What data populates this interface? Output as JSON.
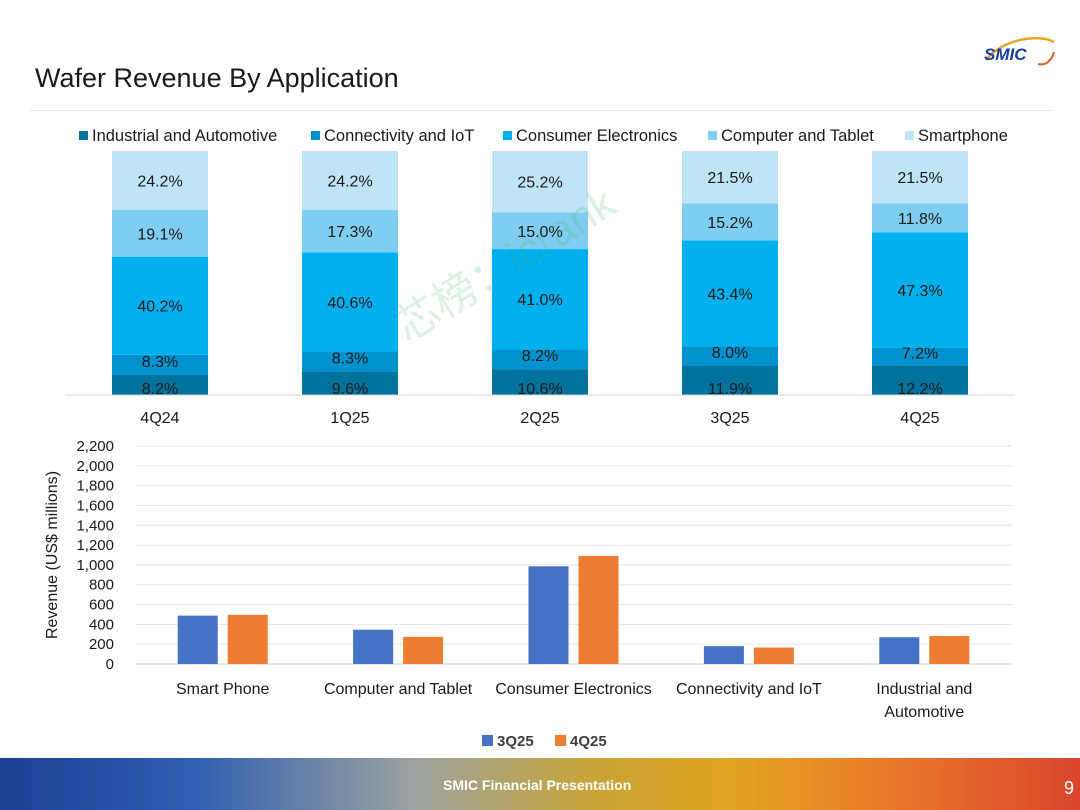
{
  "page": {
    "title": "Wafer Revenue By Application",
    "footer": "SMIC Financial Presentation",
    "page_number": "9",
    "logo_text": "SMIC",
    "watermark": "芯榜：icrank"
  },
  "colors": {
    "industrial": "#00729b",
    "connectivity": "#0091cf",
    "consumer": "#00b0ee",
    "computer": "#7fcdf1",
    "smartphone": "#bfe4f8",
    "q3": "#4472c4",
    "q4": "#ed7d31",
    "logo": "#1740a0"
  },
  "chart_data": [
    {
      "type": "bar",
      "stacked": true,
      "percent": true,
      "categories": [
        "4Q24",
        "1Q25",
        "2Q25",
        "3Q25",
        "4Q25"
      ],
      "legend_position": "top",
      "series": [
        {
          "name": "Industrial and Automotive",
          "color_key": "industrial",
          "values": [
            8.2,
            9.6,
            10.6,
            11.9,
            12.2
          ],
          "labels": [
            "8.2%",
            "9.6%",
            "10.6%",
            "11.9%",
            "12.2%"
          ]
        },
        {
          "name": "Connectivity and IoT",
          "color_key": "connectivity",
          "values": [
            8.3,
            8.3,
            8.2,
            8.0,
            7.2
          ],
          "labels": [
            "8.3%",
            "8.3%",
            "8.2%",
            "8.0%",
            "7.2%"
          ]
        },
        {
          "name": "Consumer Electronics",
          "color_key": "consumer",
          "values": [
            40.2,
            40.6,
            41.0,
            43.4,
            47.3
          ],
          "labels": [
            "40.2%",
            "40.6%",
            "41.0%",
            "43.4%",
            "47.3%"
          ]
        },
        {
          "name": "Computer and Tablet",
          "color_key": "computer",
          "values": [
            19.1,
            17.3,
            15.0,
            15.2,
            11.8
          ],
          "labels": [
            "19.1%",
            "17.3%",
            "15.0%",
            "15.2%",
            "11.8%"
          ]
        },
        {
          "name": "Smartphone",
          "color_key": "smartphone",
          "values": [
            24.2,
            24.2,
            25.2,
            21.5,
            21.5
          ],
          "labels": [
            "24.2%",
            "24.2%",
            "25.2%",
            "21.5%",
            "21.5%"
          ]
        }
      ]
    },
    {
      "type": "bar",
      "ylabel": "Revenue (US$  millions)",
      "ylim": [
        0,
        2200
      ],
      "yticks": [
        0,
        200,
        400,
        600,
        800,
        1000,
        1200,
        1400,
        1600,
        1800,
        2000,
        2200
      ],
      "ytick_labels": [
        "0",
        "200",
        "400",
        "600",
        "800",
        "1,000",
        "1,200",
        "1,400",
        "1,600",
        "1,800",
        "2,000",
        "2,200"
      ],
      "grid": true,
      "legend_position": "bottom",
      "categories": [
        [
          "Smart Phone"
        ],
        [
          "Computer and Tablet"
        ],
        [
          "Consumer Electronics"
        ],
        [
          "Connectivity and IoT"
        ],
        [
          "Industrial and",
          "Automotive"
        ]
      ],
      "series": [
        {
          "name": "3Q25",
          "color_key": "q3",
          "values": [
            488,
            346,
            986,
            180,
            270
          ]
        },
        {
          "name": "4Q25",
          "color_key": "q4",
          "values": [
            496,
            274,
            1090,
            166,
            282
          ]
        }
      ]
    }
  ]
}
